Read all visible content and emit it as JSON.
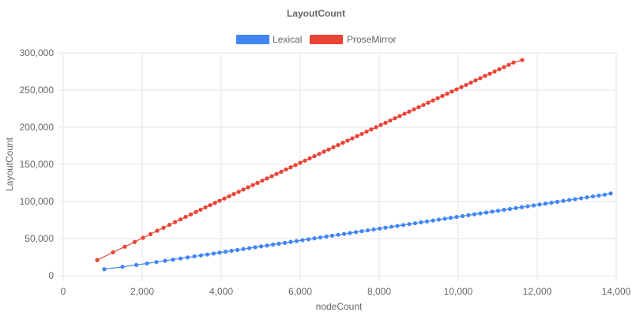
{
  "chart_data": {
    "type": "scatter",
    "title": "LayoutCount",
    "xlabel": "nodeCount",
    "ylabel": "LayoutCount",
    "xlim": [
      0,
      14000
    ],
    "ylim": [
      0,
      300000
    ],
    "x_ticks": [
      "0",
      "2,000",
      "4,000",
      "6,000",
      "8,000",
      "10,000",
      "12,000",
      "14,000"
    ],
    "y_ticks": [
      "0",
      "50,000",
      "100,000",
      "150,000",
      "200,000",
      "250,000",
      "300,000"
    ],
    "grid": true,
    "legend_position": "top",
    "series": [
      {
        "name": "Lexical",
        "color": "#4285f4",
        "points": [
          [
            1040,
            8800
          ],
          [
            1500,
            12000
          ],
          [
            1850,
            14500
          ],
          [
            2120,
            16500
          ],
          [
            2360,
            18400
          ],
          [
            2580,
            20100
          ],
          [
            2780,
            21700
          ],
          [
            2970,
            23200
          ],
          [
            3150,
            24600
          ],
          [
            3320,
            26000
          ],
          [
            3490,
            27300
          ],
          [
            3650,
            28600
          ],
          [
            3810,
            29900
          ],
          [
            3960,
            31100
          ],
          [
            4110,
            32300
          ],
          [
            4260,
            33500
          ],
          [
            4410,
            34700
          ],
          [
            4560,
            35900
          ],
          [
            4710,
            37100
          ],
          [
            4860,
            38300
          ],
          [
            5010,
            39500
          ],
          [
            5160,
            40700
          ],
          [
            5310,
            41900
          ],
          [
            5460,
            43100
          ],
          [
            5610,
            44300
          ],
          [
            5760,
            45500
          ],
          [
            5910,
            46700
          ],
          [
            6060,
            47900
          ],
          [
            6210,
            49100
          ],
          [
            6360,
            50300
          ],
          [
            6510,
            51500
          ],
          [
            6660,
            52700
          ],
          [
            6810,
            53900
          ],
          [
            6960,
            55100
          ],
          [
            7110,
            56300
          ],
          [
            7260,
            57500
          ],
          [
            7410,
            58700
          ],
          [
            7560,
            59900
          ],
          [
            7710,
            61100
          ],
          [
            7860,
            62300
          ],
          [
            8010,
            63500
          ],
          [
            8160,
            64700
          ],
          [
            8310,
            65900
          ],
          [
            8460,
            67100
          ],
          [
            8610,
            68300
          ],
          [
            8760,
            69500
          ],
          [
            8910,
            70700
          ],
          [
            9060,
            71900
          ],
          [
            9210,
            73100
          ],
          [
            9360,
            74300
          ],
          [
            9510,
            75500
          ],
          [
            9660,
            76700
          ],
          [
            9810,
            77900
          ],
          [
            9960,
            79100
          ],
          [
            10110,
            80300
          ],
          [
            10260,
            81500
          ],
          [
            10410,
            82700
          ],
          [
            10560,
            83900
          ],
          [
            10710,
            85100
          ],
          [
            10860,
            86300
          ],
          [
            11010,
            87500
          ],
          [
            11160,
            88700
          ],
          [
            11310,
            89900
          ],
          [
            11460,
            91100
          ],
          [
            11610,
            92300
          ],
          [
            11760,
            93500
          ],
          [
            11910,
            94700
          ],
          [
            12060,
            95900
          ],
          [
            12210,
            97100
          ],
          [
            12360,
            98300
          ],
          [
            12510,
            99500
          ],
          [
            12660,
            100700
          ],
          [
            12810,
            101900
          ],
          [
            12960,
            103100
          ],
          [
            13110,
            104300
          ],
          [
            13260,
            105500
          ],
          [
            13410,
            106700
          ],
          [
            13560,
            107900
          ],
          [
            13710,
            109100
          ],
          [
            13860,
            110800
          ]
        ]
      },
      {
        "name": "ProseMirror",
        "color": "#ea4335",
        "points": [
          [
            860,
            21000
          ],
          [
            1260,
            31500
          ],
          [
            1560,
            39000
          ],
          [
            1810,
            45500
          ],
          [
            2020,
            51000
          ],
          [
            2210,
            56000
          ],
          [
            2380,
            60500
          ],
          [
            2540,
            64600
          ],
          [
            2690,
            68500
          ],
          [
            2830,
            72200
          ],
          [
            2970,
            75800
          ],
          [
            3100,
            79200
          ],
          [
            3230,
            82500
          ],
          [
            3360,
            85800
          ],
          [
            3480,
            88900
          ],
          [
            3600,
            92000
          ],
          [
            3720,
            95000
          ],
          [
            3840,
            98000
          ],
          [
            3960,
            101000
          ],
          [
            4080,
            104000
          ],
          [
            4200,
            107000
          ],
          [
            4320,
            110000
          ],
          [
            4440,
            113000
          ],
          [
            4560,
            116000
          ],
          [
            4680,
            119000
          ],
          [
            4800,
            122000
          ],
          [
            4920,
            125000
          ],
          [
            5040,
            128000
          ],
          [
            5160,
            131000
          ],
          [
            5280,
            134000
          ],
          [
            5400,
            137000
          ],
          [
            5520,
            140000
          ],
          [
            5640,
            143000
          ],
          [
            5760,
            146000
          ],
          [
            5880,
            149000
          ],
          [
            6000,
            152000
          ],
          [
            6120,
            155000
          ],
          [
            6240,
            158000
          ],
          [
            6360,
            161000
          ],
          [
            6480,
            164000
          ],
          [
            6600,
            167000
          ],
          [
            6720,
            170000
          ],
          [
            6840,
            173000
          ],
          [
            6960,
            176000
          ],
          [
            7080,
            179000
          ],
          [
            7200,
            182000
          ],
          [
            7320,
            185000
          ],
          [
            7440,
            188000
          ],
          [
            7560,
            191000
          ],
          [
            7680,
            194000
          ],
          [
            7800,
            197000
          ],
          [
            7920,
            200000
          ],
          [
            8040,
            203000
          ],
          [
            8160,
            206000
          ],
          [
            8280,
            209000
          ],
          [
            8400,
            212000
          ],
          [
            8520,
            215000
          ],
          [
            8640,
            218000
          ],
          [
            8760,
            221000
          ],
          [
            8880,
            224000
          ],
          [
            9000,
            227000
          ],
          [
            9120,
            230000
          ],
          [
            9240,
            233000
          ],
          [
            9360,
            236000
          ],
          [
            9480,
            239000
          ],
          [
            9600,
            242000
          ],
          [
            9720,
            245000
          ],
          [
            9840,
            248000
          ],
          [
            9960,
            251000
          ],
          [
            10080,
            254000
          ],
          [
            10200,
            257000
          ],
          [
            10320,
            260000
          ],
          [
            10440,
            263000
          ],
          [
            10560,
            266000
          ],
          [
            10680,
            269000
          ],
          [
            10800,
            272000
          ],
          [
            10920,
            275000
          ],
          [
            11040,
            278000
          ],
          [
            11160,
            281000
          ],
          [
            11280,
            284000
          ],
          [
            11400,
            287000
          ],
          [
            11620,
            290500
          ]
        ]
      }
    ]
  }
}
